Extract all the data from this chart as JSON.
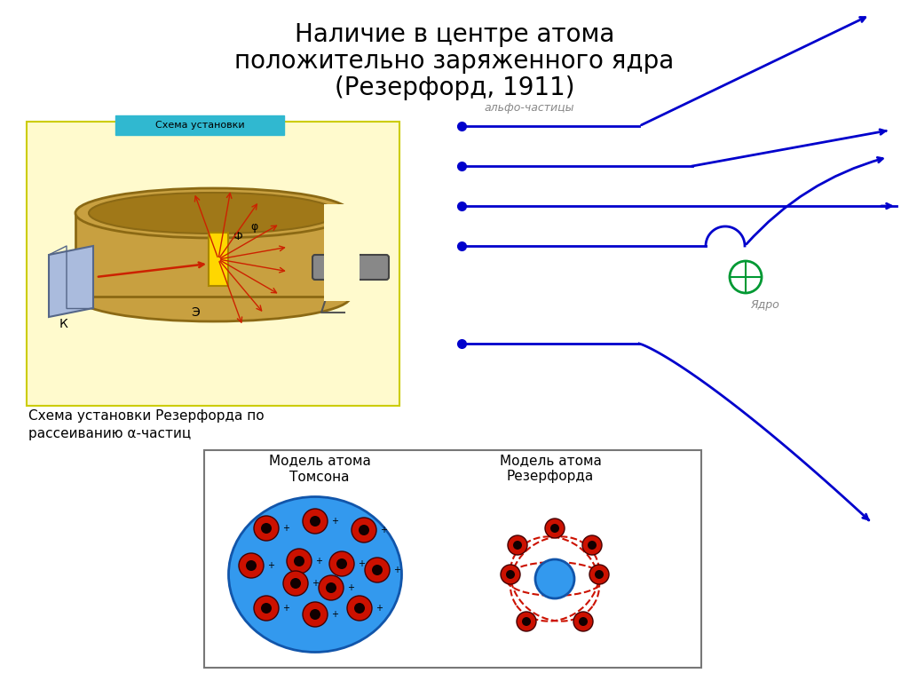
{
  "title_line1": "Наличие в центре атома",
  "title_line2": "положительно заряженного ядра",
  "title_line3": "(Резерфорд, 1911)",
  "bg_color": "#ffffff",
  "title_fontsize": 20,
  "alpha_label": "альфо-частицы",
  "yadro_label": "Ядро",
  "thomson_label1": "Модель атома",
  "thomson_label2": "Томсона",
  "rutherford_label1": "Модель атома",
  "rutherford_label2": "Резерфорда",
  "blue_color": "#0000cc",
  "green_color": "#009933",
  "red_color": "#cc2200",
  "cyan_color": "#00aacc",
  "gold_color": "#c8a040",
  "gold_dark": "#8B6914",
  "yellow_bg": "#fffacd"
}
